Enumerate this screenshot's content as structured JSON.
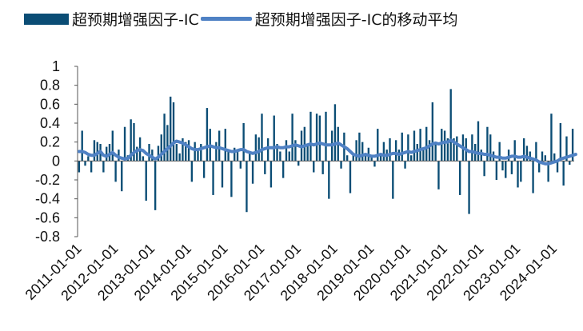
{
  "legend": {
    "bar_label": "超预期增强因子-IC",
    "line_label": "超预期增强因子-IC的移动平均"
  },
  "colors": {
    "bar": "#0b4d75",
    "line": "#4f81c4",
    "axis": "#555555"
  },
  "chart_data": {
    "type": "bar",
    "title": "",
    "xlabel": "",
    "ylabel": "",
    "ylim": [
      -0.8,
      1.0
    ],
    "yticks": [
      1,
      0.8,
      0.6,
      0.4,
      0.2,
      0,
      -0.2,
      -0.4,
      -0.6,
      -0.8
    ],
    "yticklabels": [
      "1",
      "0.8",
      "0.6",
      "0.4",
      "0.2",
      "0",
      "-0.2",
      "-0.4",
      "-0.6",
      "-0.8"
    ],
    "x_start": "2011-01",
    "x_tick_labels": [
      "2011-01-01",
      "2012-01-01",
      "2013-01-01",
      "2014-01-01",
      "2015-01-01",
      "2016-01-01",
      "2017-01-01",
      "2018-01-01",
      "2019-01-01",
      "2020-01-01",
      "2021-01-01",
      "2022-01-01",
      "2023-01-01",
      "2024-01-01"
    ],
    "series": [
      {
        "name": "超预期增强因子-IC",
        "kind": "bar",
        "values": [
          -0.12,
          0.32,
          -0.05,
          0.05,
          -0.12,
          0.22,
          0.2,
          0.18,
          -0.12,
          0.15,
          0.18,
          0.32,
          -0.22,
          0.12,
          -0.32,
          0.36,
          0.06,
          0.44,
          0.4,
          0.15,
          0.25,
          0.05,
          -0.42,
          0.18,
          0.12,
          -0.52,
          0.16,
          0.28,
          0.5,
          0.38,
          0.68,
          0.62,
          0.18,
          0.08,
          0.24,
          0.2,
          0.22,
          -0.22,
          0.2,
          0.12,
          0.18,
          -0.18,
          0.56,
          0.34,
          -0.36,
          0.2,
          0.32,
          -0.28,
          0.34,
          0.1,
          -0.38,
          0.14,
          0.12,
          -0.08,
          0.4,
          -0.54,
          0.1,
          -0.24,
          0.28,
          0.25,
          0.5,
          -0.14,
          0.24,
          -0.28,
          0.48,
          0.18,
          0.1,
          -0.18,
          0.22,
          0.1,
          0.5,
          0.22,
          -0.05,
          0.32,
          0.36,
          0.18,
          0.52,
          -0.12,
          0.5,
          0.48,
          -0.14,
          0.52,
          -0.4,
          0.32,
          0.6,
          0.36,
          -0.08,
          0.3,
          0.06,
          -0.34,
          0.08,
          0.22,
          0.3,
          0.2,
          0.06,
          0.14,
          0.06,
          -0.06,
          0.34,
          0.08,
          0.2,
          0.12,
          0.24,
          -0.4,
          0.22,
          0.12,
          0.3,
          -0.08,
          0.28,
          0.06,
          0.32,
          0.18,
          0.34,
          0.12,
          0.36,
          0.22,
          0.62,
          0.18,
          -0.3,
          0.34,
          0.32,
          0.24,
          0.76,
          0.24,
          0.26,
          -0.36,
          0.28,
          0.24,
          -0.56,
          0.28,
          0.18,
          0.42,
          0.12,
          -0.16,
          0.36,
          0.28,
          0.1,
          -0.2,
          0.2,
          -0.1,
          -0.18,
          0.12,
          -0.14,
          0.22,
          -0.28,
          -0.22,
          0.24,
          0.16,
          0.1,
          -0.34,
          0.2,
          -0.12,
          0.1,
          0.06,
          -0.22,
          0.5,
          0.08,
          -0.12,
          0.4,
          -0.26,
          0.26,
          -0.04,
          0.34
        ]
      },
      {
        "name": "超预期增强因子-IC的移动平均",
        "kind": "line",
        "values": [
          0.1,
          0.1,
          0.09,
          0.07,
          0.06,
          0.06,
          0.08,
          0.1,
          0.06,
          0.05,
          0.07,
          0.09,
          0.06,
          0.04,
          0.03,
          0.02,
          0.03,
          0.06,
          0.09,
          0.11,
          0.12,
          0.11,
          0.08,
          0.06,
          0.04,
          0.02,
          0.04,
          0.07,
          0.1,
          0.13,
          0.16,
          0.19,
          0.21,
          0.2,
          0.19,
          0.17,
          0.15,
          0.13,
          0.12,
          0.12,
          0.13,
          0.14,
          0.15,
          0.16,
          0.15,
          0.14,
          0.14,
          0.13,
          0.12,
          0.11,
          0.1,
          0.1,
          0.11,
          0.12,
          0.12,
          0.1,
          0.09,
          0.08,
          0.09,
          0.1,
          0.12,
          0.13,
          0.14,
          0.14,
          0.14,
          0.15,
          0.14,
          0.14,
          0.15,
          0.15,
          0.16,
          0.17,
          0.16,
          0.15,
          0.16,
          0.17,
          0.18,
          0.17,
          0.18,
          0.19,
          0.18,
          0.17,
          0.17,
          0.17,
          0.18,
          0.19,
          0.17,
          0.15,
          0.13,
          0.1,
          0.07,
          0.06,
          0.05,
          0.06,
          0.07,
          0.06,
          0.05,
          0.05,
          0.06,
          0.07,
          0.06,
          0.06,
          0.07,
          0.08,
          0.08,
          0.07,
          0.08,
          0.09,
          0.1,
          0.09,
          0.1,
          0.11,
          0.12,
          0.13,
          0.14,
          0.16,
          0.18,
          0.19,
          0.18,
          0.19,
          0.2,
          0.2,
          0.22,
          0.2,
          0.18,
          0.16,
          0.14,
          0.12,
          0.1,
          0.1,
          0.09,
          0.08,
          0.08,
          0.07,
          0.07,
          0.06,
          0.05,
          0.04,
          0.04,
          0.03,
          0.03,
          0.04,
          0.05,
          0.05,
          0.04,
          0.04,
          0.05,
          0.04,
          0.03,
          0.02,
          0.01,
          -0.01,
          -0.02,
          -0.03,
          -0.03,
          -0.02,
          -0.01,
          0.0,
          0.02,
          0.03,
          0.04,
          0.05,
          0.06,
          0.07
        ]
      }
    ]
  }
}
